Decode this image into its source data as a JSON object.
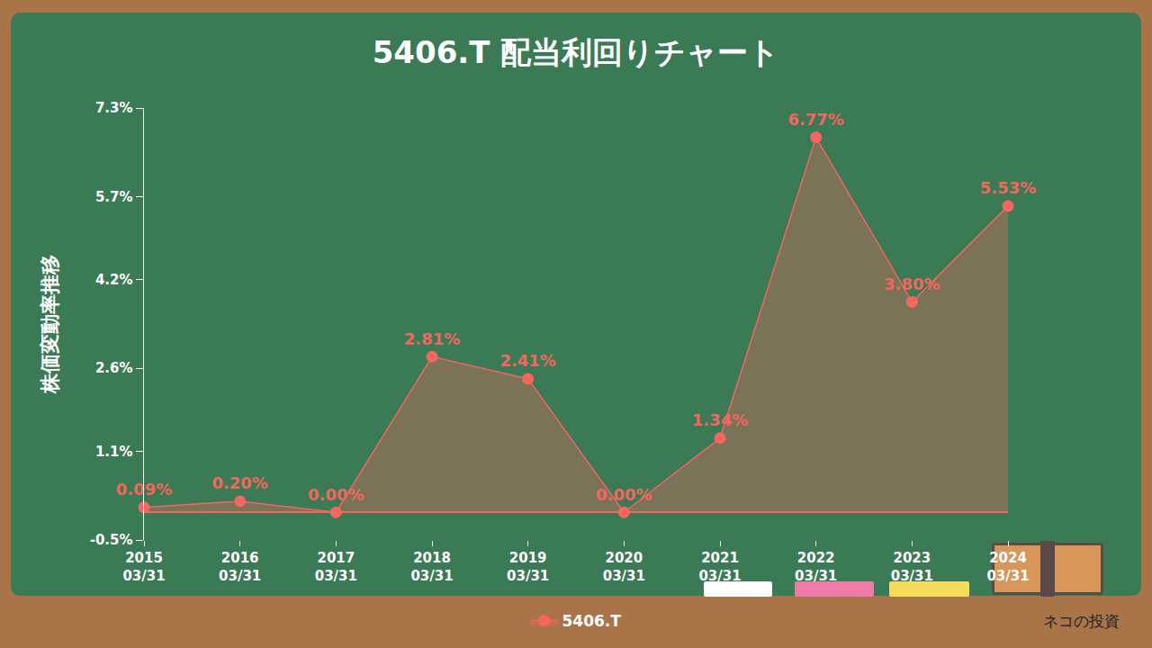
{
  "chart_data": {
    "type": "area",
    "title": "5406.T 配当利回りチャート",
    "y_label": "株価変動率推移",
    "categories": [
      "2015\n03/31",
      "2016\n03/31",
      "2017\n03/31",
      "2018\n03/31",
      "2019\n03/31",
      "2020\n03/31",
      "2021\n03/31",
      "2022\n03/31",
      "2023\n03/31",
      "2024\n03/31"
    ],
    "series": [
      {
        "name": "5406.T",
        "color": "#f4665e",
        "values": [
          0.09,
          0.2,
          0.0,
          2.81,
          2.41,
          0.0,
          1.34,
          6.77,
          3.8,
          5.53
        ],
        "value_labels": [
          "0.09%",
          "0.20%",
          "0.00%",
          "2.81%",
          "2.41%",
          "0.00%",
          "1.34%",
          "6.77%",
          "3.80%",
          "5.53%"
        ]
      }
    ],
    "ylim": [
      -0.5,
      7.3
    ],
    "yticks": [
      {
        "value": -0.5,
        "label": "-0.5%"
      },
      {
        "value": 1.1,
        "label": "1.1%"
      },
      {
        "value": 2.6,
        "label": "2.6%"
      },
      {
        "value": 4.2,
        "label": "4.2%"
      },
      {
        "value": 5.7,
        "label": "5.7%"
      },
      {
        "value": 7.3,
        "label": "7.3%"
      }
    ],
    "grid": false,
    "legend": "bottom",
    "data_labels": true,
    "marker": "circle",
    "annotations": [
      "ネコの投資"
    ]
  }
}
